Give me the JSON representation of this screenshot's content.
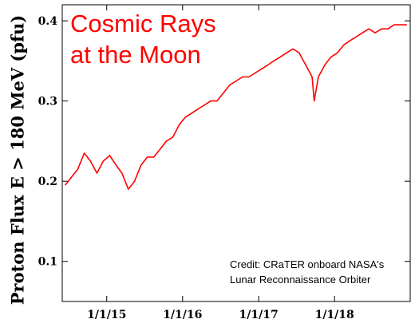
{
  "chart_data": {
    "type": "line",
    "title": "Cosmic Rays at the Moon",
    "title_lines": [
      "Cosmic Rays",
      "at the Moon"
    ],
    "ylabel": "Proton Flux E > 180 MeV (pfu)",
    "xlabel": "",
    "annotation_lines": [
      "Credit: CRaTER onboard NASA's",
      "Lunar Reconnaissance Orbiter"
    ],
    "xlim": [
      "2014-06-01",
      "2018-12-31"
    ],
    "ylim": [
      0.05,
      0.42
    ],
    "x_ticks": [
      {
        "date": "2015-01-01",
        "label": "1/1/15"
      },
      {
        "date": "2016-01-01",
        "label": "1/1/16"
      },
      {
        "date": "2017-01-01",
        "label": "1/1/17"
      },
      {
        "date": "2018-01-01",
        "label": "1/1/18"
      }
    ],
    "y_ticks": [
      {
        "value": 0.1,
        "label": "0.1"
      },
      {
        "value": 0.2,
        "label": "0.2"
      },
      {
        "value": 0.3,
        "label": "0.3"
      },
      {
        "value": 0.4,
        "label": "0.4"
      }
    ],
    "grid": false,
    "line_color": "#ff0000",
    "series": [
      {
        "x": [
          "2014-06-15",
          "2014-07-15",
          "2014-08-15",
          "2014-09-15",
          "2014-10-15",
          "2014-11-15",
          "2014-12-15",
          "2015-01-15",
          "2015-02-15",
          "2015-03-15",
          "2015-04-15",
          "2015-05-15",
          "2015-06-15",
          "2015-07-15",
          "2015-08-15",
          "2015-09-15",
          "2015-10-15",
          "2015-11-15",
          "2015-12-15",
          "2016-01-15",
          "2016-02-15",
          "2016-03-15",
          "2016-04-15",
          "2016-05-15",
          "2016-06-15",
          "2016-07-15",
          "2016-08-15",
          "2016-09-15",
          "2016-10-15",
          "2016-11-15",
          "2016-12-15",
          "2017-01-15",
          "2017-02-15",
          "2017-03-15",
          "2017-04-15",
          "2017-05-15",
          "2017-06-15",
          "2017-07-15",
          "2017-08-15",
          "2017-09-15",
          "2017-09-25",
          "2017-10-15",
          "2017-11-15",
          "2017-12-15",
          "2018-01-15",
          "2018-02-15",
          "2018-03-15",
          "2018-04-15",
          "2018-05-15",
          "2018-06-15",
          "2018-07-15",
          "2018-08-15",
          "2018-09-15",
          "2018-10-15",
          "2018-11-15",
          "2018-12-15"
        ],
        "values": [
          0.195,
          0.205,
          0.215,
          0.235,
          0.225,
          0.21,
          0.225,
          0.232,
          0.22,
          0.21,
          0.19,
          0.2,
          0.22,
          0.23,
          0.23,
          0.24,
          0.25,
          0.255,
          0.27,
          0.28,
          0.285,
          0.29,
          0.295,
          0.3,
          0.3,
          0.31,
          0.32,
          0.325,
          0.33,
          0.33,
          0.335,
          0.34,
          0.345,
          0.35,
          0.355,
          0.36,
          0.365,
          0.36,
          0.345,
          0.33,
          0.3,
          0.33,
          0.345,
          0.355,
          0.36,
          0.37,
          0.375,
          0.38,
          0.385,
          0.39,
          0.385,
          0.39,
          0.39,
          0.395,
          0.395,
          0.395
        ]
      }
    ]
  }
}
